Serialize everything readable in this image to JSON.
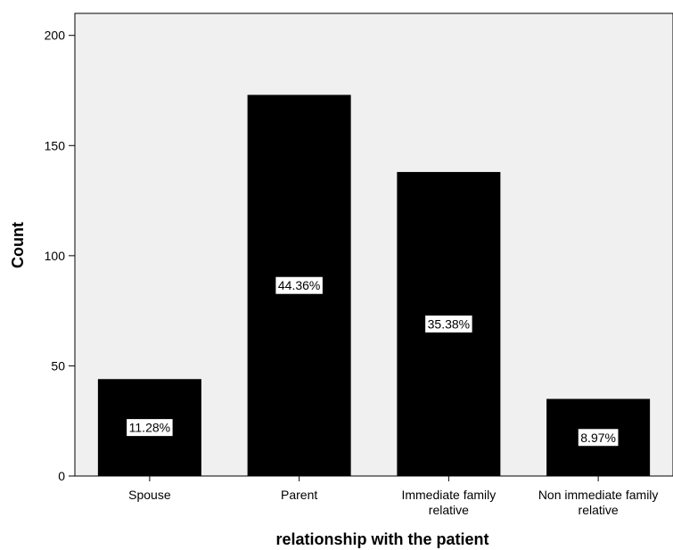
{
  "chart_data": {
    "type": "bar",
    "title": "",
    "xlabel": "relationship with the patient",
    "ylabel": "Count",
    "categories": [
      [
        "Spouse"
      ],
      [
        "Parent"
      ],
      [
        "Immediate family",
        "relative"
      ],
      [
        "Non immediate family",
        "relative"
      ]
    ],
    "values": [
      44,
      173,
      138,
      35
    ],
    "data_labels": [
      "11.28%",
      "44.36%",
      "35.38%",
      "8.97%"
    ],
    "ylim": [
      0,
      210
    ],
    "yticks": [
      0,
      50,
      100,
      150,
      200
    ],
    "grid": false,
    "colors": {
      "bar": "#000000",
      "plot_background": "#f0f0f0",
      "label_box": "#ffffff"
    }
  }
}
